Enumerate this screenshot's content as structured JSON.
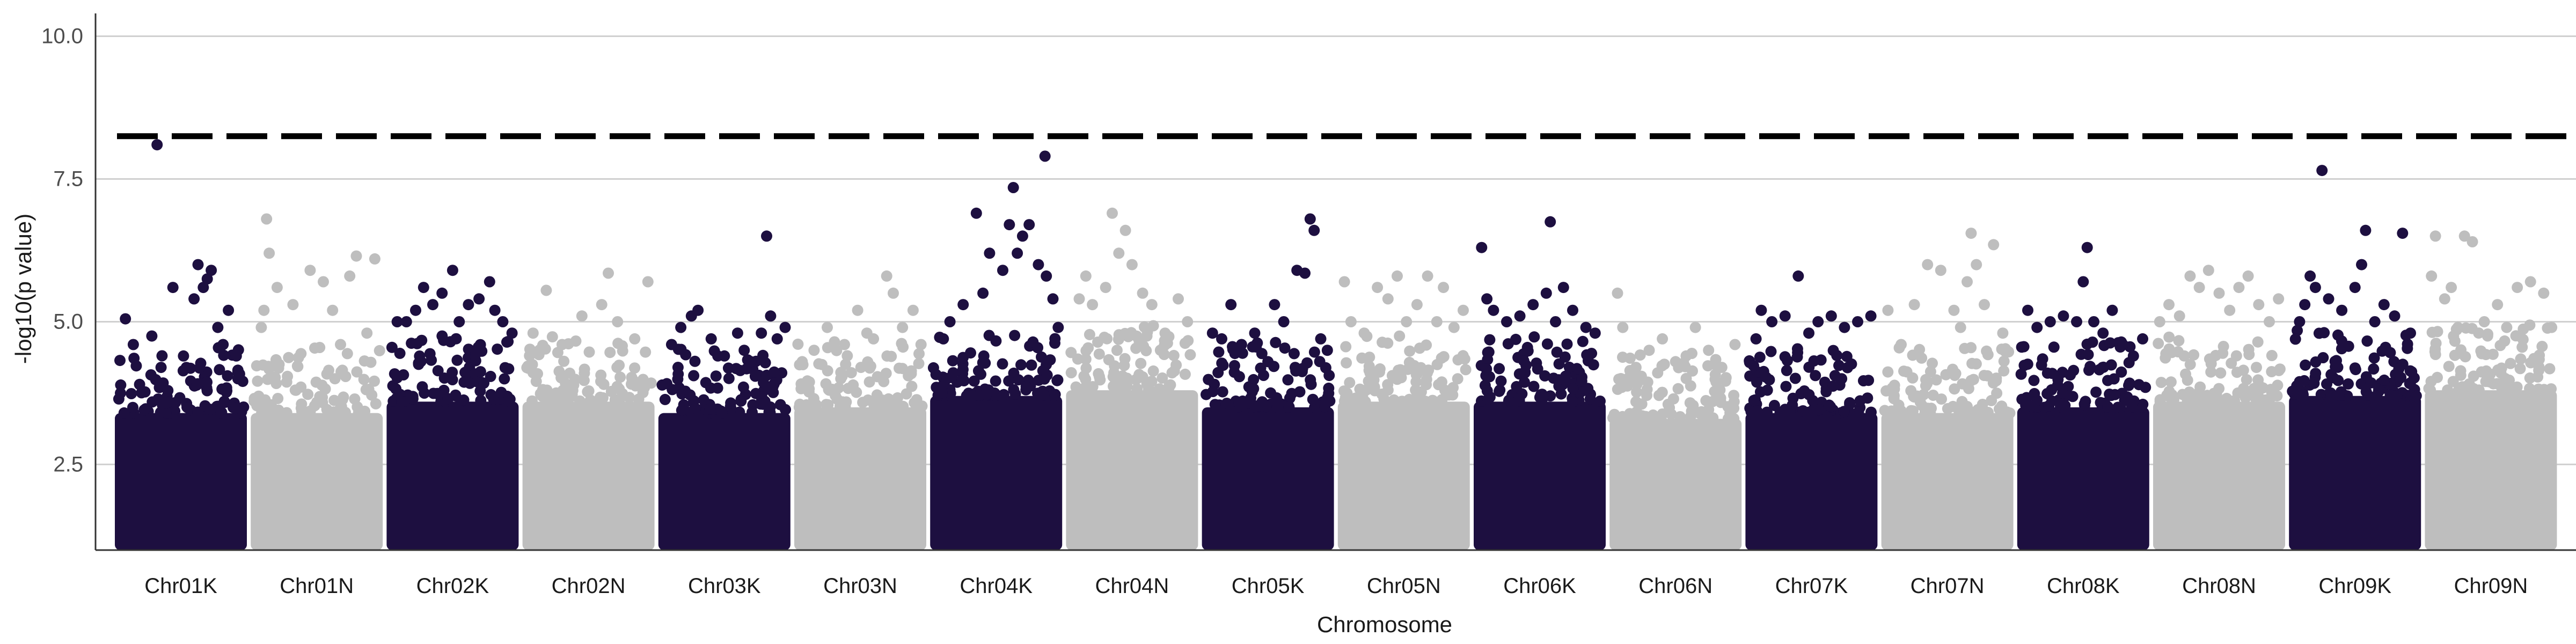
{
  "chart_data": {
    "type": "scatter",
    "subtype": "manhattan",
    "title": "",
    "xlabel": "Chromosome",
    "ylabel": "-log10(p value)",
    "ylim": [
      1.0,
      10.4
    ],
    "yticks": [
      2.5,
      5.0,
      7.5,
      10.0
    ],
    "ytick_labels": [
      "2.5",
      "5.0",
      "7.5",
      "10.0"
    ],
    "grid": "horizontal",
    "legend": "none",
    "colors": {
      "odd_chromosome": "#1d0f40",
      "even_chromosome": "#bebebe",
      "threshold_line": "#000000",
      "gridline": "#d0d0d0",
      "axis": "#333333"
    },
    "categories": [
      "Chr01K",
      "Chr01N",
      "Chr02K",
      "Chr02N",
      "Chr03K",
      "Chr03N",
      "Chr04K",
      "Chr04N",
      "Chr05K",
      "Chr05N",
      "Chr06K",
      "Chr06N",
      "Chr07K",
      "Chr07N",
      "Chr08K",
      "Chr08N",
      "Chr09K",
      "Chr09N"
    ],
    "threshold": 8.25,
    "series": [
      {
        "category": "Chr01K",
        "band_top": 3.4,
        "points": [
          [
            0.08,
            5.05
          ],
          [
            0.14,
            4.6
          ],
          [
            0.28,
            4.75
          ],
          [
            0.35,
            4.2
          ],
          [
            0.44,
            5.6
          ],
          [
            0.52,
            4.4
          ],
          [
            0.6,
            5.4
          ],
          [
            0.63,
            6.0
          ],
          [
            0.67,
            5.6
          ],
          [
            0.7,
            5.75
          ],
          [
            0.73,
            5.9
          ],
          [
            0.78,
            4.9
          ],
          [
            0.82,
            4.6
          ],
          [
            0.86,
            5.2
          ],
          [
            0.92,
            4.4
          ],
          [
            0.32,
            8.1
          ]
        ]
      },
      {
        "category": "Chr01N",
        "band_top": 3.4,
        "points": [
          [
            0.08,
            4.9
          ],
          [
            0.1,
            5.2
          ],
          [
            0.12,
            6.8
          ],
          [
            0.14,
            6.2
          ],
          [
            0.2,
            5.6
          ],
          [
            0.32,
            5.3
          ],
          [
            0.45,
            5.9
          ],
          [
            0.55,
            5.7
          ],
          [
            0.62,
            5.2
          ],
          [
            0.75,
            5.8
          ],
          [
            0.8,
            6.15
          ],
          [
            0.94,
            6.1
          ],
          [
            0.88,
            4.8
          ],
          [
            0.68,
            4.6
          ]
        ]
      },
      {
        "category": "Chr02K",
        "band_top": 3.6,
        "points": [
          [
            0.08,
            5.0
          ],
          [
            0.15,
            5.0
          ],
          [
            0.22,
            5.2
          ],
          [
            0.28,
            5.6
          ],
          [
            0.35,
            5.3
          ],
          [
            0.42,
            5.5
          ],
          [
            0.5,
            5.9
          ],
          [
            0.55,
            5.0
          ],
          [
            0.62,
            5.3
          ],
          [
            0.7,
            5.4
          ],
          [
            0.78,
            5.7
          ],
          [
            0.82,
            5.2
          ],
          [
            0.88,
            5.0
          ],
          [
            0.95,
            4.8
          ]
        ]
      },
      {
        "category": "Chr02N",
        "band_top": 3.6,
        "points": [
          [
            0.08,
            4.8
          ],
          [
            0.18,
            5.55
          ],
          [
            0.3,
            4.6
          ],
          [
            0.45,
            5.1
          ],
          [
            0.6,
            5.3
          ],
          [
            0.65,
            5.85
          ],
          [
            0.72,
            5.0
          ],
          [
            0.85,
            4.7
          ],
          [
            0.95,
            5.7
          ]
        ]
      },
      {
        "category": "Chr03K",
        "band_top": 3.4,
        "points": [
          [
            0.1,
            4.6
          ],
          [
            0.17,
            4.9
          ],
          [
            0.25,
            5.1
          ],
          [
            0.3,
            5.2
          ],
          [
            0.4,
            4.7
          ],
          [
            0.5,
            4.4
          ],
          [
            0.6,
            4.8
          ],
          [
            0.65,
            4.5
          ],
          [
            0.7,
            4.3
          ],
          [
            0.78,
            4.8
          ],
          [
            0.82,
            6.5
          ],
          [
            0.85,
            5.1
          ],
          [
            0.9,
            4.7
          ],
          [
            0.96,
            4.9
          ]
        ]
      },
      {
        "category": "Chr03N",
        "band_top": 3.5,
        "points": [
          [
            0.06,
            4.3
          ],
          [
            0.15,
            4.5
          ],
          [
            0.25,
            4.9
          ],
          [
            0.38,
            4.6
          ],
          [
            0.48,
            5.2
          ],
          [
            0.55,
            4.8
          ],
          [
            0.6,
            4.7
          ],
          [
            0.7,
            5.8
          ],
          [
            0.75,
            5.5
          ],
          [
            0.82,
            4.9
          ],
          [
            0.9,
            5.2
          ],
          [
            0.96,
            4.6
          ]
        ]
      },
      {
        "category": "Chr04K",
        "band_top": 3.7,
        "points": [
          [
            0.1,
            4.7
          ],
          [
            0.15,
            5.0
          ],
          [
            0.25,
            5.3
          ],
          [
            0.35,
            6.9
          ],
          [
            0.4,
            5.5
          ],
          [
            0.45,
            6.2
          ],
          [
            0.55,
            5.9
          ],
          [
            0.6,
            6.7
          ],
          [
            0.63,
            7.35
          ],
          [
            0.66,
            6.2
          ],
          [
            0.7,
            6.5
          ],
          [
            0.75,
            6.7
          ],
          [
            0.82,
            6.0
          ],
          [
            0.88,
            5.8
          ],
          [
            0.93,
            5.4
          ],
          [
            0.97,
            4.9
          ],
          [
            0.87,
            7.9
          ]
        ]
      },
      {
        "category": "Chr04N",
        "band_top": 3.8,
        "points": [
          [
            0.1,
            5.4
          ],
          [
            0.15,
            5.8
          ],
          [
            0.2,
            5.3
          ],
          [
            0.3,
            5.6
          ],
          [
            0.35,
            6.9
          ],
          [
            0.4,
            6.2
          ],
          [
            0.45,
            6.6
          ],
          [
            0.5,
            6.0
          ],
          [
            0.58,
            5.5
          ],
          [
            0.65,
            5.3
          ],
          [
            0.75,
            4.8
          ],
          [
            0.85,
            5.4
          ],
          [
            0.92,
            5.0
          ]
        ]
      },
      {
        "category": "Chr05K",
        "band_top": 3.5,
        "points": [
          [
            0.08,
            4.8
          ],
          [
            0.15,
            4.7
          ],
          [
            0.22,
            5.3
          ],
          [
            0.3,
            4.6
          ],
          [
            0.4,
            4.8
          ],
          [
            0.5,
            4.3
          ],
          [
            0.55,
            5.3
          ],
          [
            0.62,
            5.0
          ],
          [
            0.72,
            5.9
          ],
          [
            0.78,
            5.85
          ],
          [
            0.82,
            6.8
          ],
          [
            0.85,
            6.6
          ],
          [
            0.9,
            4.7
          ],
          [
            0.95,
            4.5
          ]
        ]
      },
      {
        "category": "Chr05N",
        "band_top": 3.6,
        "points": [
          [
            0.05,
            5.7
          ],
          [
            0.1,
            5.0
          ],
          [
            0.2,
            4.8
          ],
          [
            0.3,
            5.6
          ],
          [
            0.38,
            5.4
          ],
          [
            0.45,
            5.8
          ],
          [
            0.52,
            5.0
          ],
          [
            0.6,
            5.3
          ],
          [
            0.68,
            5.8
          ],
          [
            0.75,
            5.0
          ],
          [
            0.8,
            5.6
          ],
          [
            0.88,
            4.9
          ],
          [
            0.95,
            5.2
          ]
        ]
      },
      {
        "category": "Chr06K",
        "band_top": 3.6,
        "points": [
          [
            0.06,
            6.3
          ],
          [
            0.1,
            5.4
          ],
          [
            0.15,
            5.2
          ],
          [
            0.25,
            5.0
          ],
          [
            0.35,
            5.1
          ],
          [
            0.45,
            5.3
          ],
          [
            0.55,
            5.5
          ],
          [
            0.58,
            6.75
          ],
          [
            0.62,
            5.0
          ],
          [
            0.68,
            5.6
          ],
          [
            0.75,
            5.2
          ],
          [
            0.85,
            4.9
          ],
          [
            0.92,
            4.8
          ]
        ]
      },
      {
        "category": "Chr06N",
        "band_top": 3.3,
        "points": [
          [
            0.06,
            5.5
          ],
          [
            0.1,
            4.9
          ],
          [
            0.2,
            4.2
          ],
          [
            0.3,
            4.5
          ],
          [
            0.4,
            4.7
          ],
          [
            0.5,
            4.3
          ],
          [
            0.58,
            4.4
          ],
          [
            0.65,
            4.9
          ],
          [
            0.75,
            4.5
          ],
          [
            0.85,
            4.2
          ],
          [
            0.95,
            4.6
          ]
        ]
      },
      {
        "category": "Chr07K",
        "band_top": 3.4,
        "points": [
          [
            0.08,
            4.7
          ],
          [
            0.12,
            5.2
          ],
          [
            0.2,
            5.0
          ],
          [
            0.3,
            5.1
          ],
          [
            0.4,
            5.8
          ],
          [
            0.48,
            4.8
          ],
          [
            0.55,
            5.0
          ],
          [
            0.65,
            5.1
          ],
          [
            0.75,
            4.9
          ],
          [
            0.85,
            5.0
          ],
          [
            0.95,
            5.1
          ]
        ]
      },
      {
        "category": "Chr07N",
        "band_top": 3.4,
        "points": [
          [
            0.05,
            5.2
          ],
          [
            0.15,
            4.6
          ],
          [
            0.25,
            5.3
          ],
          [
            0.35,
            6.0
          ],
          [
            0.45,
            5.9
          ],
          [
            0.55,
            5.2
          ],
          [
            0.6,
            4.9
          ],
          [
            0.65,
            5.7
          ],
          [
            0.68,
            6.55
          ],
          [
            0.72,
            6.0
          ],
          [
            0.78,
            5.3
          ],
          [
            0.85,
            6.35
          ],
          [
            0.92,
            4.8
          ]
        ]
      },
      {
        "category": "Chr08K",
        "band_top": 3.5,
        "points": [
          [
            0.08,
            5.2
          ],
          [
            0.15,
            4.9
          ],
          [
            0.25,
            5.0
          ],
          [
            0.35,
            5.1
          ],
          [
            0.45,
            5.0
          ],
          [
            0.5,
            5.7
          ],
          [
            0.53,
            6.3
          ],
          [
            0.58,
            5.0
          ],
          [
            0.65,
            4.8
          ],
          [
            0.72,
            5.2
          ],
          [
            0.8,
            4.6
          ],
          [
            0.88,
            4.4
          ],
          [
            0.95,
            4.7
          ]
        ]
      },
      {
        "category": "Chr08N",
        "band_top": 3.6,
        "points": [
          [
            0.05,
            5.0
          ],
          [
            0.12,
            5.3
          ],
          [
            0.2,
            5.1
          ],
          [
            0.28,
            5.8
          ],
          [
            0.35,
            5.6
          ],
          [
            0.42,
            5.9
          ],
          [
            0.5,
            5.5
          ],
          [
            0.58,
            5.2
          ],
          [
            0.65,
            5.6
          ],
          [
            0.72,
            5.8
          ],
          [
            0.8,
            5.3
          ],
          [
            0.88,
            5.0
          ],
          [
            0.95,
            5.4
          ]
        ]
      },
      {
        "category": "Chr09K",
        "band_top": 3.7,
        "points": [
          [
            0.08,
            5.0
          ],
          [
            0.12,
            5.3
          ],
          [
            0.16,
            5.8
          ],
          [
            0.2,
            5.6
          ],
          [
            0.25,
            7.65
          ],
          [
            0.3,
            5.4
          ],
          [
            0.4,
            5.2
          ],
          [
            0.5,
            5.6
          ],
          [
            0.55,
            6.0
          ],
          [
            0.58,
            6.6
          ],
          [
            0.65,
            5.0
          ],
          [
            0.72,
            5.3
          ],
          [
            0.8,
            5.1
          ],
          [
            0.86,
            6.55
          ],
          [
            0.92,
            4.8
          ]
        ]
      },
      {
        "category": "Chr09N",
        "band_top": 3.8,
        "points": [
          [
            0.05,
            5.8
          ],
          [
            0.08,
            6.5
          ],
          [
            0.15,
            5.4
          ],
          [
            0.2,
            5.6
          ],
          [
            0.25,
            4.9
          ],
          [
            0.3,
            6.5
          ],
          [
            0.36,
            6.4
          ],
          [
            0.45,
            5.0
          ],
          [
            0.55,
            5.3
          ],
          [
            0.62,
            4.9
          ],
          [
            0.7,
            5.6
          ],
          [
            0.8,
            5.7
          ],
          [
            0.9,
            5.5
          ],
          [
            0.96,
            4.9
          ]
        ]
      }
    ]
  }
}
